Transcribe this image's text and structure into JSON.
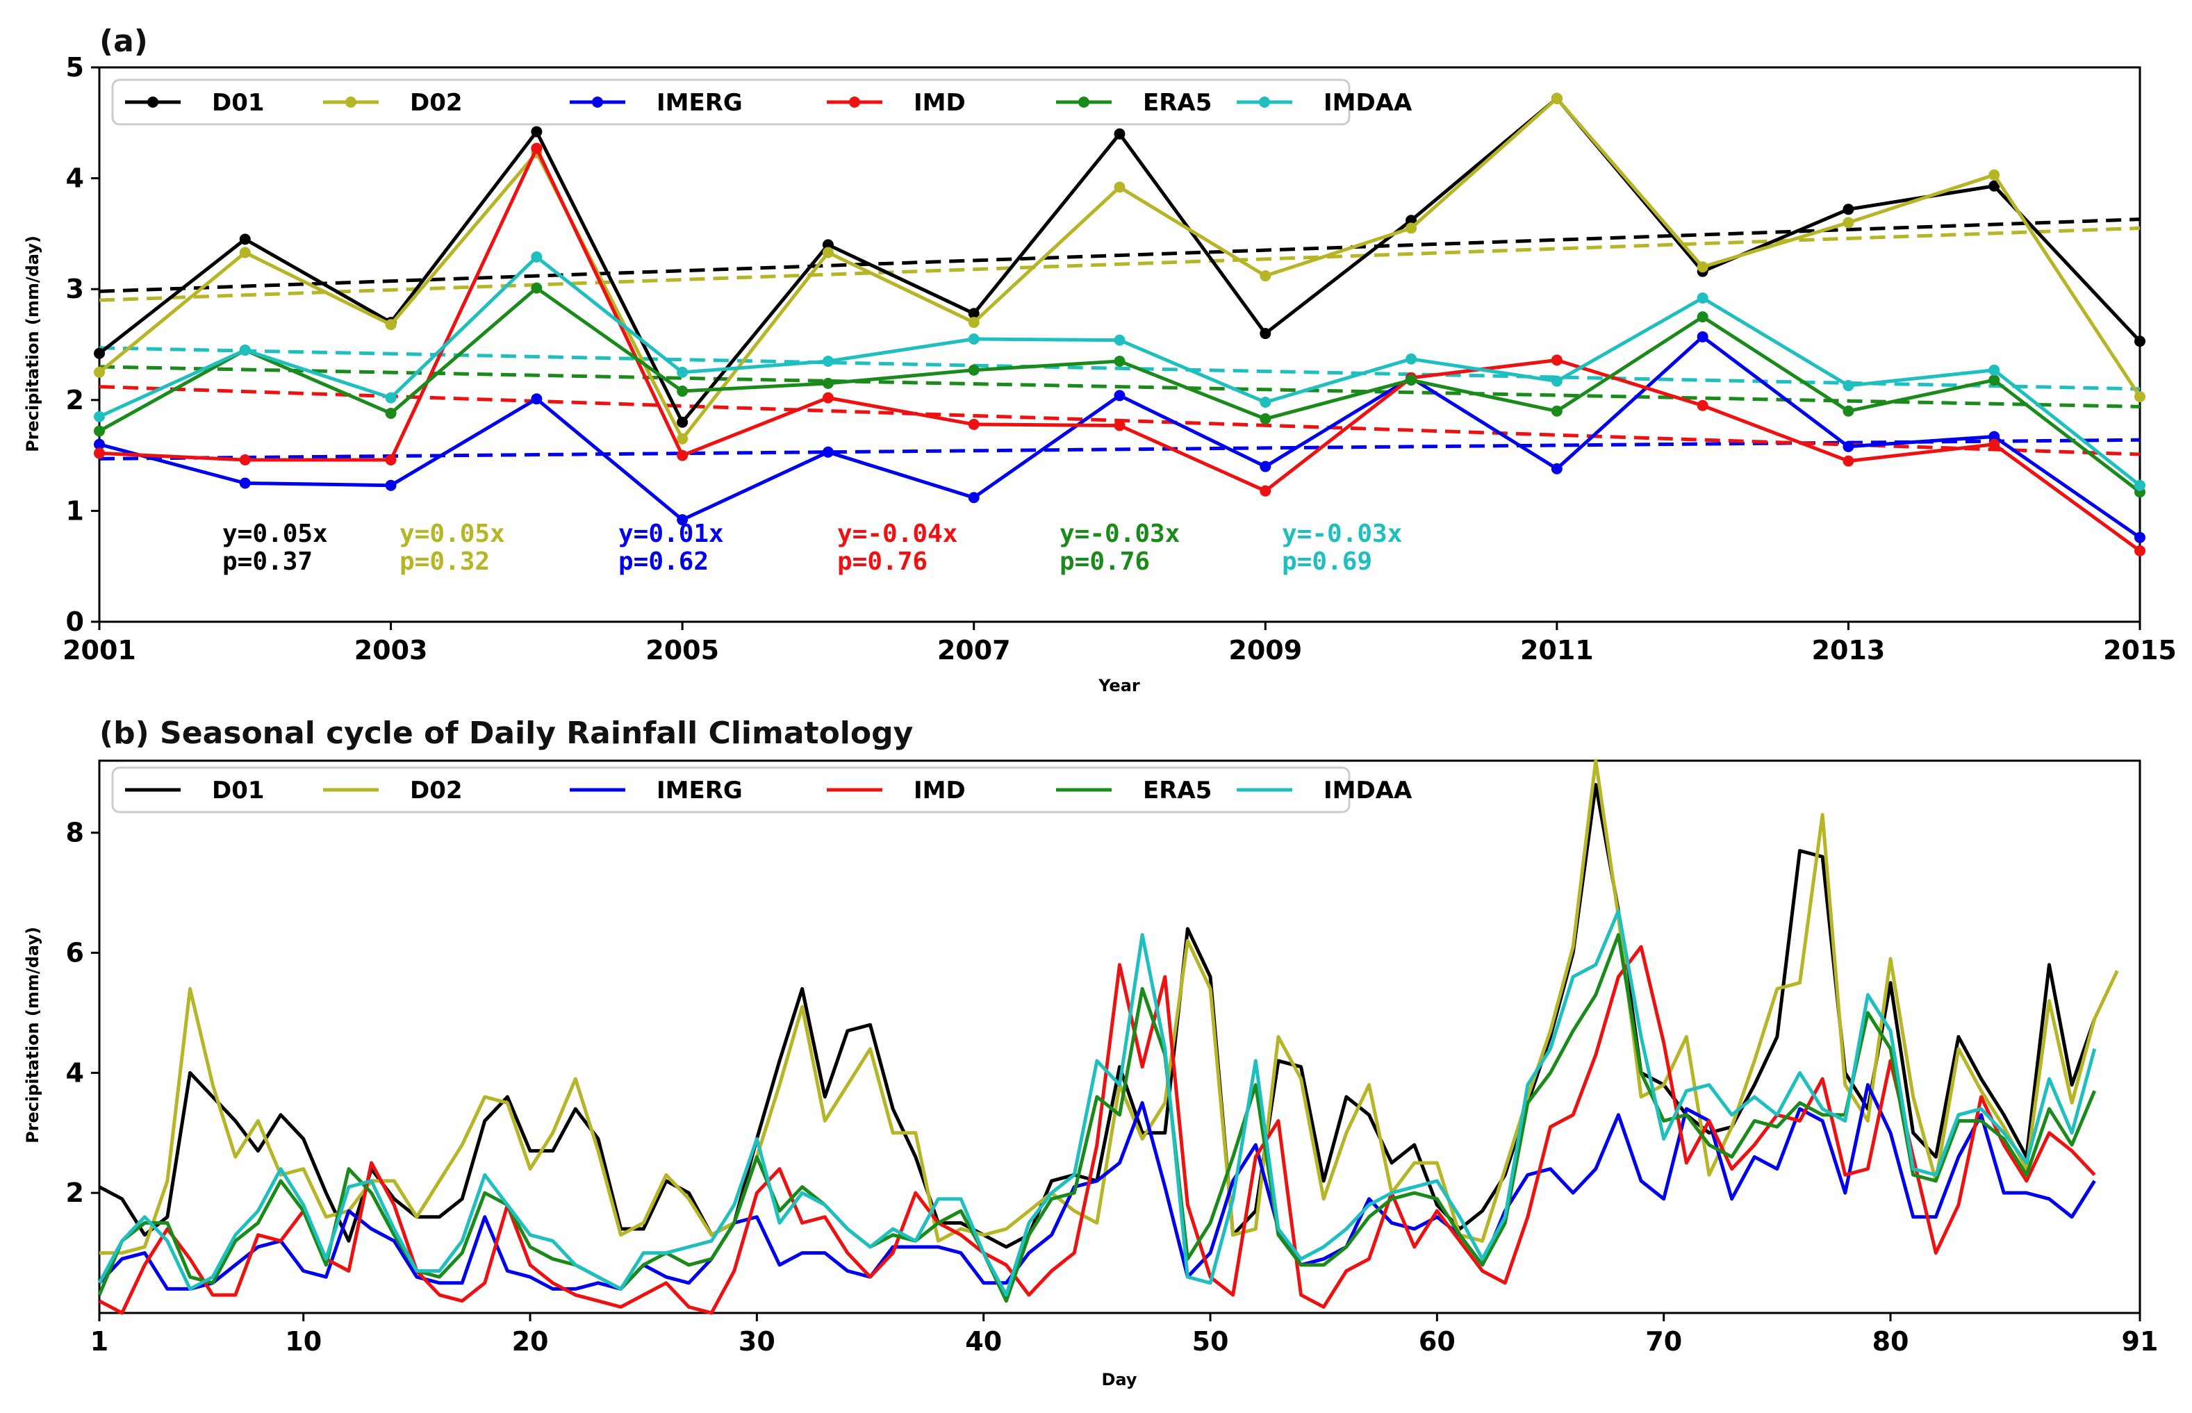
{
  "chart_data": [
    {
      "type": "line",
      "title": "(a)",
      "xlabel": "Year",
      "ylabel": "Precipitation (mm/day)",
      "xlim": [
        2001,
        2015
      ],
      "ylim": [
        0,
        5
      ],
      "xticks": [
        "2001",
        "2003",
        "2005",
        "2007",
        "2009",
        "2011",
        "2013",
        "2015"
      ],
      "yticks": [
        "0",
        "1",
        "2",
        "3",
        "4",
        "5"
      ],
      "legend_position": "top-left",
      "x": [
        2001,
        2002,
        2003,
        2004,
        2005,
        2006,
        2007,
        2008,
        2009,
        2010,
        2011,
        2012,
        2013,
        2014,
        2015
      ],
      "series": [
        {
          "name": "D01",
          "color": "#000000",
          "values": [
            2.42,
            3.45,
            2.7,
            4.42,
            1.8,
            3.4,
            2.78,
            4.4,
            2.6,
            3.62,
            4.72,
            3.16,
            3.72,
            3.93,
            2.53
          ],
          "trend": [
            2.98,
            3.63
          ]
        },
        {
          "name": "D02",
          "color": "#b5b526",
          "values": [
            2.25,
            3.33,
            2.68,
            4.23,
            1.65,
            3.33,
            2.7,
            3.92,
            3.12,
            3.55,
            4.72,
            3.2,
            3.6,
            4.03,
            2.03
          ],
          "trend": [
            2.9,
            3.55
          ]
        },
        {
          "name": "IMERG",
          "color": "#0000ee",
          "values": [
            1.6,
            1.25,
            1.23,
            2.01,
            0.92,
            1.53,
            1.12,
            2.04,
            1.4,
            2.2,
            1.38,
            2.57,
            1.58,
            1.67,
            0.76
          ],
          "trend": [
            1.47,
            1.64
          ]
        },
        {
          "name": "IMD",
          "color": "#ee1111",
          "values": [
            1.52,
            1.46,
            1.46,
            4.27,
            1.5,
            2.02,
            1.78,
            1.77,
            1.18,
            2.2,
            2.36,
            1.95,
            1.45,
            1.6,
            0.64
          ],
          "trend": [
            2.12,
            1.51
          ]
        },
        {
          "name": "ERA5",
          "color": "#1a8a1a",
          "values": [
            1.72,
            2.45,
            1.88,
            3.01,
            2.08,
            2.15,
            2.27,
            2.35,
            1.83,
            2.18,
            1.9,
            2.75,
            1.9,
            2.18,
            1.17
          ],
          "trend": [
            2.3,
            1.94
          ]
        },
        {
          "name": "IMDAA",
          "color": "#1fbfbf",
          "values": [
            1.85,
            2.45,
            2.02,
            3.29,
            2.25,
            2.35,
            2.55,
            2.54,
            1.98,
            2.37,
            2.17,
            2.92,
            2.13,
            2.27,
            1.23
          ],
          "trend": [
            2.47,
            2.1
          ]
        }
      ],
      "annotations": [
        {
          "series": "D01",
          "slope": "y=0.05x",
          "p": "p=0.37",
          "color": "#000000"
        },
        {
          "series": "D02",
          "slope": "y=0.05x",
          "p": "p=0.32",
          "color": "#b5b526"
        },
        {
          "series": "IMERG",
          "slope": "y=0.01x",
          "p": "p=0.62",
          "color": "#0000ee"
        },
        {
          "series": "IMD",
          "slope": "y=-0.04x",
          "p": "p=0.76",
          "color": "#ee1111"
        },
        {
          "series": "ERA5",
          "slope": "y=-0.03x",
          "p": "p=0.76",
          "color": "#1a8a1a"
        },
        {
          "series": "IMDAA",
          "slope": "y=-0.03x",
          "p": "p=0.69",
          "color": "#1fbfbf"
        }
      ]
    },
    {
      "type": "line",
      "title": "(b) Seasonal cycle of Daily Rainfall Climatology",
      "xlabel": "Day",
      "ylabel": "Precipitation (mm/day)",
      "xlim": [
        1,
        91
      ],
      "ylim": [
        0,
        9.2
      ],
      "xticks": [
        "1",
        "10",
        "20",
        "30",
        "40",
        "50",
        "60",
        "70",
        "80",
        "91"
      ],
      "xtick_values": [
        1,
        10,
        20,
        30,
        40,
        50,
        60,
        70,
        80,
        91
      ],
      "yticks": [
        "2",
        "4",
        "6",
        "8"
      ],
      "legend_position": "top-left",
      "x_start": 1,
      "series": [
        {
          "name": "D01",
          "color": "#000000",
          "values": [
            2.1,
            1.9,
            1.3,
            1.6,
            4.0,
            3.6,
            3.2,
            2.7,
            3.3,
            2.9,
            2.0,
            1.2,
            2.4,
            1.9,
            1.6,
            1.6,
            1.9,
            3.2,
            3.6,
            2.7,
            2.7,
            3.4,
            2.9,
            1.4,
            1.4,
            2.2,
            2.0,
            1.3,
            1.5,
            2.9,
            4.2,
            5.4,
            3.6,
            4.7,
            4.8,
            3.4,
            2.6,
            1.5,
            1.5,
            1.3,
            1.1,
            1.3,
            2.2,
            2.3,
            2.2,
            4.1,
            3.0,
            3.0,
            6.4,
            5.6,
            1.3,
            1.7,
            4.2,
            4.1,
            2.2,
            3.6,
            3.3,
            2.5,
            2.8,
            1.8,
            1.4,
            1.7,
            2.3,
            3.5,
            4.6,
            6.0,
            8.8,
            6.7,
            4.0,
            3.8,
            3.3,
            3.0,
            3.1,
            3.8,
            4.6,
            7.7,
            7.6,
            4.0,
            3.4,
            5.5,
            3.0,
            2.6,
            4.6,
            3.9,
            3.3,
            2.6,
            5.8,
            3.8,
            4.9
          ],
          "trend": null
        },
        {
          "name": "D02",
          "color": "#b5b526",
          "values": [
            1.0,
            1.0,
            1.1,
            2.2,
            5.4,
            3.8,
            2.6,
            3.2,
            2.3,
            2.4,
            1.6,
            1.7,
            2.2,
            2.2,
            1.6,
            2.2,
            2.8,
            3.6,
            3.5,
            2.4,
            3.0,
            3.9,
            2.7,
            1.3,
            1.5,
            2.3,
            1.9,
            1.3,
            1.5,
            2.6,
            3.8,
            5.1,
            3.2,
            3.8,
            4.4,
            3.0,
            3.0,
            1.2,
            1.4,
            1.3,
            1.4,
            1.7,
            2.0,
            1.7,
            1.5,
            3.8,
            2.9,
            3.5,
            6.2,
            5.4,
            1.3,
            1.4,
            4.6,
            3.9,
            1.9,
            3.0,
            3.8,
            2.0,
            2.5,
            2.5,
            1.3,
            1.2,
            2.4,
            3.6,
            4.7,
            6.1,
            9.2,
            6.6,
            3.6,
            3.8,
            4.6,
            2.3,
            3.1,
            4.2,
            5.4,
            5.5,
            8.3,
            3.8,
            3.2,
            5.9,
            3.6,
            2.2,
            4.4,
            3.7,
            3.1,
            2.4,
            5.2,
            3.5,
            4.9,
            5.7
          ],
          "trend": null
        },
        {
          "name": "IMERG",
          "color": "#0000ee",
          "values": [
            0.5,
            0.9,
            1.0,
            0.4,
            0.4,
            0.5,
            0.8,
            1.1,
            1.2,
            0.7,
            0.6,
            1.7,
            1.4,
            1.2,
            0.6,
            0.5,
            0.5,
            1.6,
            0.7,
            0.6,
            0.4,
            0.4,
            0.5,
            0.4,
            0.8,
            0.6,
            0.5,
            0.9,
            1.5,
            1.6,
            0.8,
            1.0,
            1.0,
            0.7,
            0.6,
            1.1,
            1.1,
            1.1,
            1.0,
            0.5,
            0.5,
            1.0,
            1.3,
            2.1,
            2.2,
            2.5,
            3.5,
            2.1,
            0.6,
            1.0,
            2.2,
            2.8,
            1.4,
            0.8,
            0.9,
            1.1,
            1.9,
            1.5,
            1.4,
            1.6,
            1.3,
            0.8,
            1.7,
            2.3,
            2.4,
            2.0,
            2.4,
            3.3,
            2.2,
            1.9,
            3.4,
            3.2,
            1.9,
            2.6,
            2.4,
            3.4,
            3.2,
            2.0,
            3.8,
            3.0,
            1.6,
            1.6,
            2.6,
            3.3,
            2.0,
            2.0,
            1.9,
            1.6,
            2.2
          ],
          "trend": null
        },
        {
          "name": "IMD",
          "color": "#ee1111",
          "values": [
            0.2,
            0.0,
            0.8,
            1.4,
            0.9,
            0.3,
            0.3,
            1.3,
            1.2,
            1.7,
            0.9,
            0.7,
            2.5,
            1.8,
            0.7,
            0.3,
            0.2,
            0.5,
            1.8,
            0.8,
            0.5,
            0.3,
            0.2,
            0.1,
            0.3,
            0.5,
            0.1,
            0.0,
            0.7,
            2.0,
            2.4,
            1.5,
            1.6,
            1.0,
            0.6,
            1.0,
            2.0,
            1.5,
            1.3,
            1.0,
            0.8,
            0.3,
            0.7,
            1.0,
            2.8,
            5.8,
            4.1,
            5.6,
            1.8,
            0.6,
            0.3,
            2.6,
            3.2,
            0.3,
            0.1,
            0.7,
            0.9,
            2.0,
            1.1,
            1.7,
            1.2,
            0.7,
            0.5,
            1.6,
            3.1,
            3.3,
            4.3,
            5.6,
            6.1,
            4.5,
            2.5,
            3.2,
            2.4,
            2.8,
            3.3,
            3.2,
            3.9,
            2.3,
            2.4,
            4.2,
            2.6,
            1.0,
            1.8,
            3.6,
            2.8,
            2.2,
            3.0,
            2.7,
            2.3
          ],
          "trend": null
        },
        {
          "name": "ERA5",
          "color": "#1a8a1a",
          "values": [
            0.3,
            1.2,
            1.5,
            1.5,
            0.6,
            0.5,
            1.2,
            1.5,
            2.2,
            1.7,
            0.8,
            2.4,
            2.0,
            1.3,
            0.7,
            0.6,
            1.0,
            2.0,
            1.8,
            1.1,
            0.9,
            0.8,
            0.6,
            0.4,
            0.8,
            1.0,
            0.8,
            0.9,
            1.5,
            2.6,
            1.7,
            2.1,
            1.8,
            1.4,
            1.1,
            1.3,
            1.2,
            1.5,
            1.7,
            1.0,
            0.2,
            1.3,
            1.9,
            2.0,
            3.6,
            3.3,
            5.4,
            4.3,
            0.9,
            1.5,
            2.6,
            3.8,
            1.3,
            0.8,
            0.8,
            1.1,
            1.6,
            1.9,
            2.0,
            1.9,
            1.3,
            0.8,
            1.5,
            3.5,
            4.0,
            4.7,
            5.3,
            6.3,
            4.0,
            3.2,
            3.3,
            2.8,
            2.6,
            3.2,
            3.1,
            3.5,
            3.3,
            3.3,
            5.0,
            4.4,
            2.3,
            2.2,
            3.2,
            3.2,
            2.9,
            2.3,
            3.4,
            2.8,
            3.7
          ],
          "trend": null
        },
        {
          "name": "IMDAA",
          "color": "#1fbfbf",
          "values": [
            0.5,
            1.2,
            1.6,
            1.2,
            0.4,
            0.6,
            1.3,
            1.7,
            2.4,
            1.8,
            0.9,
            2.1,
            2.2,
            1.4,
            0.7,
            0.7,
            1.2,
            2.3,
            1.8,
            1.3,
            1.2,
            0.8,
            0.6,
            0.4,
            1.0,
            1.0,
            1.1,
            1.2,
            1.8,
            2.9,
            1.5,
            2.0,
            1.8,
            1.4,
            1.1,
            1.4,
            1.2,
            1.9,
            1.9,
            1.0,
            0.3,
            1.5,
            2.0,
            2.3,
            4.2,
            3.8,
            6.3,
            4.4,
            0.6,
            0.5,
            1.9,
            4.2,
            1.4,
            0.9,
            1.1,
            1.4,
            1.8,
            2.0,
            2.1,
            2.2,
            1.6,
            0.9,
            1.6,
            3.8,
            4.4,
            5.6,
            5.8,
            6.7,
            4.6,
            2.9,
            3.7,
            3.8,
            3.3,
            3.6,
            3.3,
            4.0,
            3.4,
            3.2,
            5.3,
            4.7,
            2.4,
            2.3,
            3.3,
            3.4,
            3.0,
            2.5,
            3.9,
            3.0,
            4.4
          ],
          "trend": null
        }
      ]
    }
  ]
}
